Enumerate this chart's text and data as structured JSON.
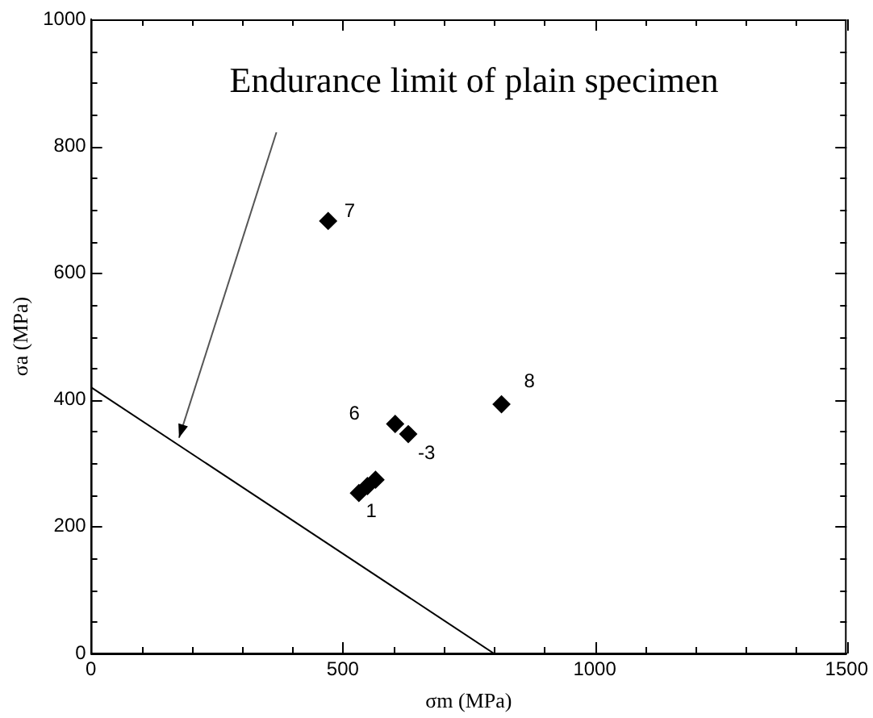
{
  "chart_data": {
    "type": "scatter",
    "xlabel": "σm (MPa)",
    "ylabel": "σa (MPa)",
    "xlim": [
      0,
      1500
    ],
    "ylim": [
      0,
      1000
    ],
    "xticks": [
      0,
      {
        "value": 100,
        "label": null
      },
      {
        "value": 200,
        "label": null
      },
      {
        "value": 300,
        "label": null
      },
      {
        "value": 400,
        "label": null
      },
      500,
      {
        "value": 600,
        "label": null
      },
      {
        "value": 700,
        "label": null
      },
      {
        "value": 800,
        "label": null
      },
      {
        "value": 900,
        "label": null
      },
      1000,
      {
        "value": 1100,
        "label": null
      },
      {
        "value": 1200,
        "label": null
      },
      {
        "value": 1300,
        "label": null
      },
      {
        "value": 1400,
        "label": null
      },
      1500
    ],
    "yticks": [
      0,
      {
        "value": 50,
        "label": null
      },
      {
        "value": 100,
        "label": null
      },
      {
        "value": 150,
        "label": null
      },
      200,
      {
        "value": 250,
        "label": null
      },
      {
        "value": 300,
        "label": null
      },
      {
        "value": 350,
        "label": null
      },
      400,
      {
        "value": 450,
        "label": null
      },
      {
        "value": 500,
        "label": null
      },
      {
        "value": 550,
        "label": null
      },
      600,
      {
        "value": 650,
        "label": null
      },
      {
        "value": 700,
        "label": null
      },
      {
        "value": 750,
        "label": null
      },
      800,
      {
        "value": 850,
        "label": null
      },
      {
        "value": 900,
        "label": null
      },
      {
        "value": 950,
        "label": null
      },
      1000
    ],
    "grid": false,
    "legend": false,
    "marker": "diamond",
    "series": [
      {
        "color": "#000000",
        "x": [
          471,
          815,
          604,
          630,
          532,
          549,
          565
        ],
        "values": [
          682,
          393,
          362,
          346,
          253,
          264,
          274
        ]
      },
      {
        "type": "line",
        "color": "#000000",
        "x": [
          0,
          800
        ],
        "values": [
          420,
          0
        ],
        "marker": "none"
      }
    ],
    "annotations": [
      "Endurance limit of plain specimen",
      {
        "text": "7",
        "x": 471,
        "y": 682
      },
      {
        "text": "8",
        "x": 815,
        "y": 393
      },
      {
        "text": "6",
        "x": 604,
        "y": 362
      },
      {
        "text": "-3",
        "x": 630,
        "y": 346
      },
      {
        "text": "1",
        "x": 565,
        "y": 274
      }
    ]
  }
}
